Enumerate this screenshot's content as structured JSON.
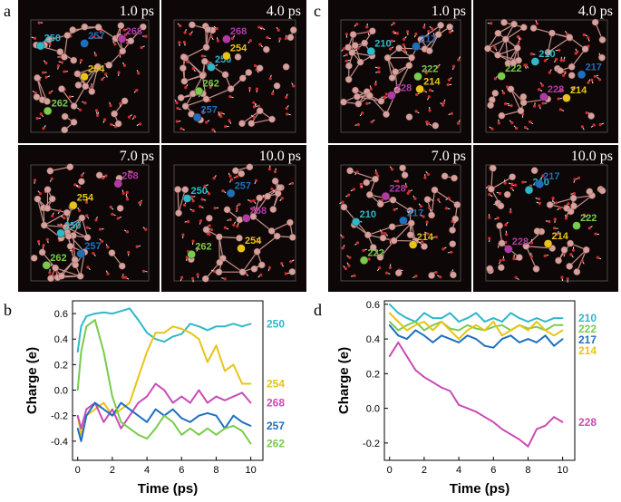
{
  "figure": {
    "panels": {
      "a": {
        "letter": "a",
        "times": [
          "1.0 ps",
          "4.0 ps",
          "7.0 ps",
          "10.0 ps"
        ],
        "atoms": [
          [
            {
              "id": "250",
              "color": "#2fb8c8",
              "tone": "cyan"
            },
            {
              "id": "254",
              "color": "#e9c416",
              "tone": "yellow"
            },
            {
              "id": "262",
              "color": "#7acb4c",
              "tone": "green"
            },
            {
              "id": "257",
              "color": "#1f6fbf",
              "tone": "blue"
            },
            {
              "id": "268",
              "color": "#b33aa6",
              "tone": "magenta"
            }
          ],
          [
            {
              "id": "250",
              "color": "#2fb8c8",
              "tone": "cyan"
            },
            {
              "id": "254",
              "color": "#e9c416",
              "tone": "yellow"
            },
            {
              "id": "262",
              "color": "#7acb4c",
              "tone": "green"
            },
            {
              "id": "257",
              "color": "#1f6fbf",
              "tone": "blue"
            },
            {
              "id": "268",
              "color": "#b33aa6",
              "tone": "magenta"
            }
          ],
          [
            {
              "id": "250",
              "color": "#2fb8c8",
              "tone": "cyan"
            },
            {
              "id": "254",
              "color": "#e9c416",
              "tone": "yellow"
            },
            {
              "id": "262",
              "color": "#7acb4c",
              "tone": "green"
            },
            {
              "id": "257",
              "color": "#1f6fbf",
              "tone": "blue"
            },
            {
              "id": "268",
              "color": "#b33aa6",
              "tone": "magenta"
            }
          ],
          [
            {
              "id": "250",
              "color": "#2fb8c8",
              "tone": "cyan"
            },
            {
              "id": "254",
              "color": "#e9c416",
              "tone": "yellow"
            },
            {
              "id": "262",
              "color": "#7acb4c",
              "tone": "green"
            },
            {
              "id": "257",
              "color": "#1f6fbf",
              "tone": "blue"
            },
            {
              "id": "268",
              "color": "#b33aa6",
              "tone": "magenta"
            }
          ]
        ]
      },
      "b": {
        "letter": "b"
      },
      "c": {
        "letter": "c",
        "times": [
          "1.0 ps",
          "4.0 ps",
          "7.0 ps",
          "10.0 ps"
        ],
        "atoms": [
          [
            {
              "id": "210",
              "color": "#2fb8c8",
              "tone": "cyan"
            },
            {
              "id": "214",
              "color": "#e9c416",
              "tone": "yellow"
            },
            {
              "id": "222",
              "color": "#7acb4c",
              "tone": "green"
            },
            {
              "id": "228",
              "color": "#b33aa6",
              "tone": "magenta"
            },
            {
              "id": "217",
              "color": "#1f6fbf",
              "tone": "blue"
            }
          ],
          [
            {
              "id": "210",
              "color": "#2fb8c8",
              "tone": "cyan"
            },
            {
              "id": "214",
              "color": "#e9c416",
              "tone": "yellow"
            },
            {
              "id": "222",
              "color": "#7acb4c",
              "tone": "green"
            },
            {
              "id": "228",
              "color": "#b33aa6",
              "tone": "magenta"
            },
            {
              "id": "217",
              "color": "#1f6fbf",
              "tone": "blue"
            }
          ],
          [
            {
              "id": "210",
              "color": "#2fb8c8",
              "tone": "cyan"
            },
            {
              "id": "214",
              "color": "#e9c416",
              "tone": "yellow"
            },
            {
              "id": "222",
              "color": "#7acb4c",
              "tone": "green"
            },
            {
              "id": "228",
              "color": "#b33aa6",
              "tone": "magenta"
            },
            {
              "id": "217",
              "color": "#1f6fbf",
              "tone": "blue"
            }
          ],
          [
            {
              "id": "210",
              "color": "#2fb8c8",
              "tone": "cyan"
            },
            {
              "id": "214",
              "color": "#e9c416",
              "tone": "yellow"
            },
            {
              "id": "222",
              "color": "#7acb4c",
              "tone": "green"
            },
            {
              "id": "228",
              "color": "#b33aa6",
              "tone": "magenta"
            },
            {
              "id": "217",
              "color": "#1f6fbf",
              "tone": "blue"
            }
          ]
        ]
      },
      "d": {
        "letter": "d"
      }
    }
  },
  "chart_data": [
    {
      "panel": "b",
      "type": "line",
      "title": "",
      "xlabel": "Time (ps)",
      "ylabel": "Charge (e)",
      "xlim": [
        -0.3,
        10.7
      ],
      "ylim": [
        -0.55,
        0.7
      ],
      "xticks": [
        0,
        2,
        4,
        6,
        8,
        10
      ],
      "xtick_labels": [
        "0",
        "2",
        "4",
        "6",
        "8",
        "10"
      ],
      "yticks": [
        -0.4,
        -0.2,
        0.0,
        0.2,
        0.4,
        0.6
      ],
      "ytick_labels": [
        "-0.4",
        "-0.2",
        "0.0",
        "0.2",
        "0.4",
        "0.6"
      ],
      "legend": "right",
      "series": [
        {
          "name": "250",
          "color": "#2fb8c8",
          "x": [
            0,
            0.2,
            0.5,
            1,
            1.5,
            2,
            2.5,
            3,
            3.5,
            4,
            4.5,
            5,
            5.5,
            6,
            6.5,
            7,
            7.5,
            8,
            8.5,
            9,
            9.5,
            10
          ],
          "y": [
            0.3,
            0.5,
            0.58,
            0.6,
            0.61,
            0.6,
            0.62,
            0.64,
            0.55,
            0.45,
            0.4,
            0.38,
            0.42,
            0.44,
            0.52,
            0.5,
            0.47,
            0.5,
            0.5,
            0.52,
            0.5,
            0.52
          ]
        },
        {
          "name": "254",
          "color": "#e9c416",
          "x": [
            0,
            0.2,
            0.5,
            1,
            1.5,
            2,
            2.5,
            3,
            3.5,
            4,
            4.5,
            5,
            5.5,
            6,
            6.5,
            7,
            7.5,
            8,
            8.5,
            9,
            9.5,
            10
          ],
          "y": [
            -0.2,
            -0.35,
            -0.2,
            -0.15,
            -0.1,
            -0.2,
            -0.15,
            -0.1,
            0.1,
            0.3,
            0.45,
            0.45,
            0.5,
            0.48,
            0.45,
            0.4,
            0.22,
            0.35,
            0.15,
            0.2,
            0.05,
            0.05
          ]
        },
        {
          "name": "268",
          "color": "#c94bb5",
          "x": [
            0,
            0.2,
            0.5,
            1,
            1.5,
            2,
            2.5,
            3,
            3.5,
            4,
            4.5,
            5,
            5.5,
            6,
            6.5,
            7,
            7.5,
            8,
            8.5,
            9,
            9.5,
            10
          ],
          "y": [
            -0.2,
            -0.3,
            -0.15,
            -0.1,
            -0.25,
            -0.15,
            -0.3,
            -0.2,
            -0.1,
            -0.05,
            0.05,
            0.0,
            -0.1,
            -0.05,
            -0.1,
            0.0,
            -0.1,
            -0.05,
            -0.08,
            -0.05,
            -0.02,
            -0.1
          ]
        },
        {
          "name": "257",
          "color": "#1f6fbf",
          "x": [
            0,
            0.2,
            0.5,
            1,
            1.5,
            2,
            2.5,
            3,
            3.5,
            4,
            4.5,
            5,
            5.5,
            6,
            6.5,
            7,
            7.5,
            8,
            8.5,
            9,
            9.5,
            10
          ],
          "y": [
            -0.3,
            -0.4,
            -0.2,
            -0.1,
            -0.15,
            -0.2,
            -0.1,
            -0.15,
            -0.2,
            -0.25,
            -0.15,
            -0.2,
            -0.15,
            -0.22,
            -0.25,
            -0.2,
            -0.18,
            -0.2,
            -0.3,
            -0.2,
            -0.25,
            -0.28
          ]
        },
        {
          "name": "262",
          "color": "#7acb4c",
          "x": [
            0,
            0.2,
            0.5,
            1,
            1.5,
            2,
            2.5,
            3,
            3.5,
            4,
            4.5,
            5,
            5.5,
            6,
            6.5,
            7,
            7.5,
            8,
            8.5,
            9,
            9.5,
            10
          ],
          "y": [
            0.0,
            0.3,
            0.5,
            0.55,
            0.3,
            -0.05,
            -0.25,
            -0.3,
            -0.35,
            -0.38,
            -0.3,
            -0.2,
            -0.25,
            -0.35,
            -0.3,
            -0.35,
            -0.3,
            -0.35,
            -0.3,
            -0.28,
            -0.32,
            -0.42
          ]
        }
      ]
    },
    {
      "panel": "d",
      "type": "line",
      "title": "",
      "xlabel": "Time (ps)",
      "ylabel": "Charge (e)",
      "xlim": [
        -0.3,
        10.7
      ],
      "ylim": [
        -0.3,
        0.62
      ],
      "xticks": [
        0,
        2,
        4,
        6,
        8,
        10
      ],
      "xtick_labels": [
        "0",
        "2",
        "4",
        "6",
        "8",
        "10"
      ],
      "yticks": [
        -0.2,
        0.0,
        0.2,
        0.4,
        0.6
      ],
      "ytick_labels": [
        "-0.2",
        "0.0",
        "0.2",
        "0.4",
        "0.6"
      ],
      "legend": "right",
      "series": [
        {
          "name": "210",
          "color": "#2fb8c8",
          "x": [
            0,
            0.5,
            1,
            1.5,
            2,
            2.5,
            3,
            3.5,
            4,
            4.5,
            5,
            5.5,
            6,
            6.5,
            7,
            7.5,
            8,
            8.5,
            9,
            9.5,
            10
          ],
          "y": [
            0.6,
            0.55,
            0.52,
            0.5,
            0.55,
            0.52,
            0.52,
            0.55,
            0.5,
            0.52,
            0.55,
            0.5,
            0.52,
            0.5,
            0.55,
            0.52,
            0.5,
            0.52,
            0.5,
            0.52,
            0.52
          ]
        },
        {
          "name": "222",
          "color": "#7acb4c",
          "x": [
            0,
            0.5,
            1,
            1.5,
            2,
            2.5,
            3,
            3.5,
            4,
            4.5,
            5,
            5.5,
            6,
            6.5,
            7,
            7.5,
            8,
            8.5,
            9,
            9.5,
            10
          ],
          "y": [
            0.5,
            0.45,
            0.48,
            0.5,
            0.45,
            0.48,
            0.5,
            0.46,
            0.45,
            0.48,
            0.46,
            0.45,
            0.47,
            0.48,
            0.45,
            0.48,
            0.46,
            0.47,
            0.45,
            0.48,
            0.48
          ]
        },
        {
          "name": "217",
          "color": "#1f6fbf",
          "x": [
            0,
            0.5,
            1,
            1.5,
            2,
            2.5,
            3,
            3.5,
            4,
            4.5,
            5,
            5.5,
            6,
            6.5,
            7,
            7.5,
            8,
            8.5,
            9,
            9.5,
            10
          ],
          "y": [
            0.48,
            0.42,
            0.4,
            0.45,
            0.42,
            0.38,
            0.42,
            0.4,
            0.38,
            0.42,
            0.4,
            0.36,
            0.35,
            0.4,
            0.42,
            0.38,
            0.4,
            0.38,
            0.42,
            0.36,
            0.4
          ]
        },
        {
          "name": "214",
          "color": "#e9c416",
          "x": [
            0,
            0.5,
            1,
            1.5,
            2,
            2.5,
            3,
            3.5,
            4,
            4.5,
            5,
            5.5,
            6,
            6.5,
            7,
            7.5,
            8,
            8.5,
            9,
            9.5,
            10
          ],
          "y": [
            0.55,
            0.5,
            0.45,
            0.48,
            0.5,
            0.45,
            0.5,
            0.45,
            0.4,
            0.45,
            0.48,
            0.45,
            0.5,
            0.42,
            0.45,
            0.48,
            0.45,
            0.5,
            0.45,
            0.42,
            0.45
          ]
        },
        {
          "name": "228",
          "color": "#c94bb5",
          "x": [
            0,
            0.5,
            1,
            1.5,
            2,
            2.5,
            3,
            3.5,
            4,
            4.5,
            5,
            5.5,
            6,
            6.5,
            7,
            7.5,
            8,
            8.5,
            9,
            9.5,
            10
          ],
          "y": [
            0.3,
            0.38,
            0.3,
            0.22,
            0.18,
            0.15,
            0.12,
            0.1,
            0.02,
            0.0,
            -0.02,
            -0.05,
            -0.08,
            -0.12,
            -0.15,
            -0.18,
            -0.22,
            -0.12,
            -0.1,
            -0.05,
            -0.08
          ]
        }
      ]
    }
  ]
}
